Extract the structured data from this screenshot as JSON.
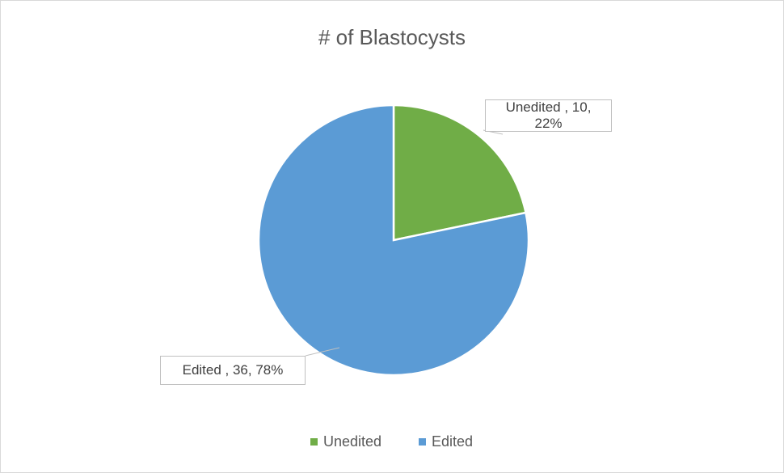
{
  "chart_data": {
    "type": "pie",
    "title": "# of Blastocysts",
    "categories": [
      "Unedited",
      "Edited"
    ],
    "values": [
      10,
      36
    ],
    "value_labels": [
      "Unedited , 10, 22%",
      "Edited , 36, 78%"
    ],
    "colors": [
      "#70ad47",
      "#5b9bd5"
    ],
    "legend": "bottom"
  }
}
